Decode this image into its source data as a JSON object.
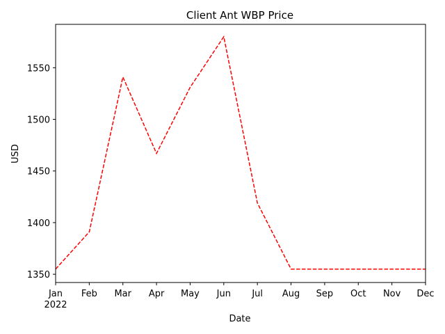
{
  "chart_data": {
    "type": "line",
    "title": "Client Ant WBP Price",
    "xlabel": "Date",
    "ylabel": "USD",
    "x": [
      "2022-01",
      "2022-02",
      "2022-03",
      "2022-04",
      "2022-05",
      "2022-06",
      "2022-07",
      "2022-08",
      "2022-09",
      "2022-10",
      "2022-11",
      "2022-12"
    ],
    "x_tick_labels": [
      "Jan",
      "Feb",
      "Mar",
      "Apr",
      "May",
      "Jun",
      "Jul",
      "Aug",
      "Sep",
      "Oct",
      "Nov",
      "Dec"
    ],
    "x_year_label": "2022",
    "series": [
      {
        "values": [
          1355,
          1391,
          1541,
          1467,
          1531,
          1580,
          1419,
          1355,
          1355,
          1355,
          1355,
          1355
        ],
        "color": "#ff0000",
        "line_style": "dashed"
      }
    ],
    "y_ticks": [
      1350,
      1400,
      1450,
      1500,
      1550
    ],
    "ylim": [
      1342,
      1592
    ],
    "grid": false,
    "legend": false
  }
}
